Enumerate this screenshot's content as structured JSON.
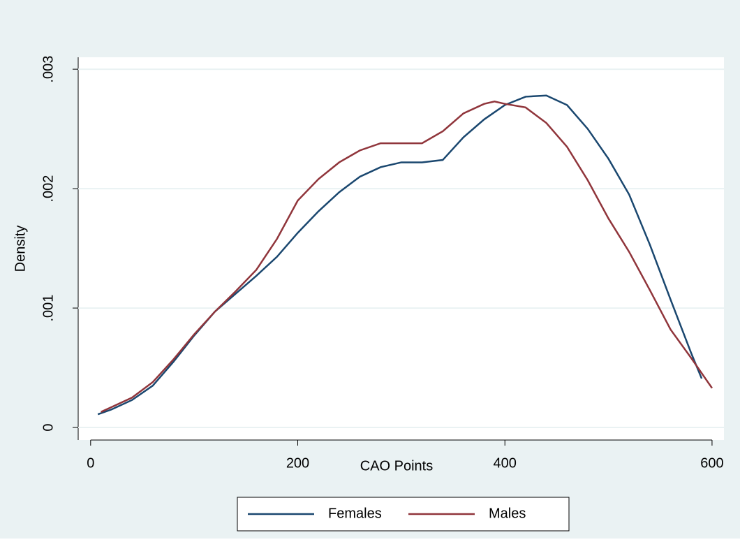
{
  "chart_data": {
    "type": "line",
    "xlabel": "CAO Points",
    "ylabel": "Density",
    "xlim": [
      -12,
      611.5
    ],
    "ylim": [
      -0.000105,
      0.0031
    ],
    "xticks": [
      0,
      200,
      400,
      600
    ],
    "yticks": [
      0,
      {
        "value": 0.001,
        "label": ".001"
      },
      {
        "value": 0.002,
        "label": ".002"
      },
      {
        "value": 0.003,
        "label": ".003"
      }
    ],
    "grid": true,
    "legend": "bottom",
    "series": [
      {
        "name": "Females",
        "color": "#1a476f",
        "x": [
          7,
          20,
          40,
          60,
          80,
          100,
          120,
          140,
          160,
          180,
          200,
          220,
          240,
          260,
          280,
          300,
          320,
          340,
          360,
          380,
          400,
          420,
          440,
          460,
          480,
          500,
          520,
          540,
          560,
          580,
          590
        ],
        "values": [
          0.00011,
          0.00015,
          0.00023,
          0.00035,
          0.00055,
          0.00077,
          0.00097,
          0.00112,
          0.00127,
          0.00143,
          0.00163,
          0.00181,
          0.00197,
          0.0021,
          0.00218,
          0.00222,
          0.00222,
          0.00224,
          0.00243,
          0.00258,
          0.0027,
          0.00277,
          0.00278,
          0.0027,
          0.0025,
          0.00225,
          0.00195,
          0.00153,
          0.00107,
          0.00062,
          0.00041
        ]
      },
      {
        "name": "Males",
        "color": "#90353b",
        "x": [
          10,
          20,
          40,
          60,
          80,
          100,
          120,
          140,
          160,
          180,
          200,
          220,
          240,
          260,
          280,
          300,
          320,
          340,
          360,
          380,
          390,
          400,
          420,
          440,
          460,
          480,
          500,
          520,
          540,
          560,
          580,
          600
        ],
        "values": [
          0.00013,
          0.00017,
          0.00025,
          0.00038,
          0.00057,
          0.00078,
          0.00097,
          0.00114,
          0.00132,
          0.00158,
          0.0019,
          0.00208,
          0.00222,
          0.00232,
          0.00238,
          0.00238,
          0.00238,
          0.00248,
          0.00263,
          0.00271,
          0.00273,
          0.00271,
          0.00268,
          0.00255,
          0.00235,
          0.00207,
          0.00175,
          0.00147,
          0.00115,
          0.00082,
          0.00058,
          0.00033
        ]
      }
    ]
  }
}
